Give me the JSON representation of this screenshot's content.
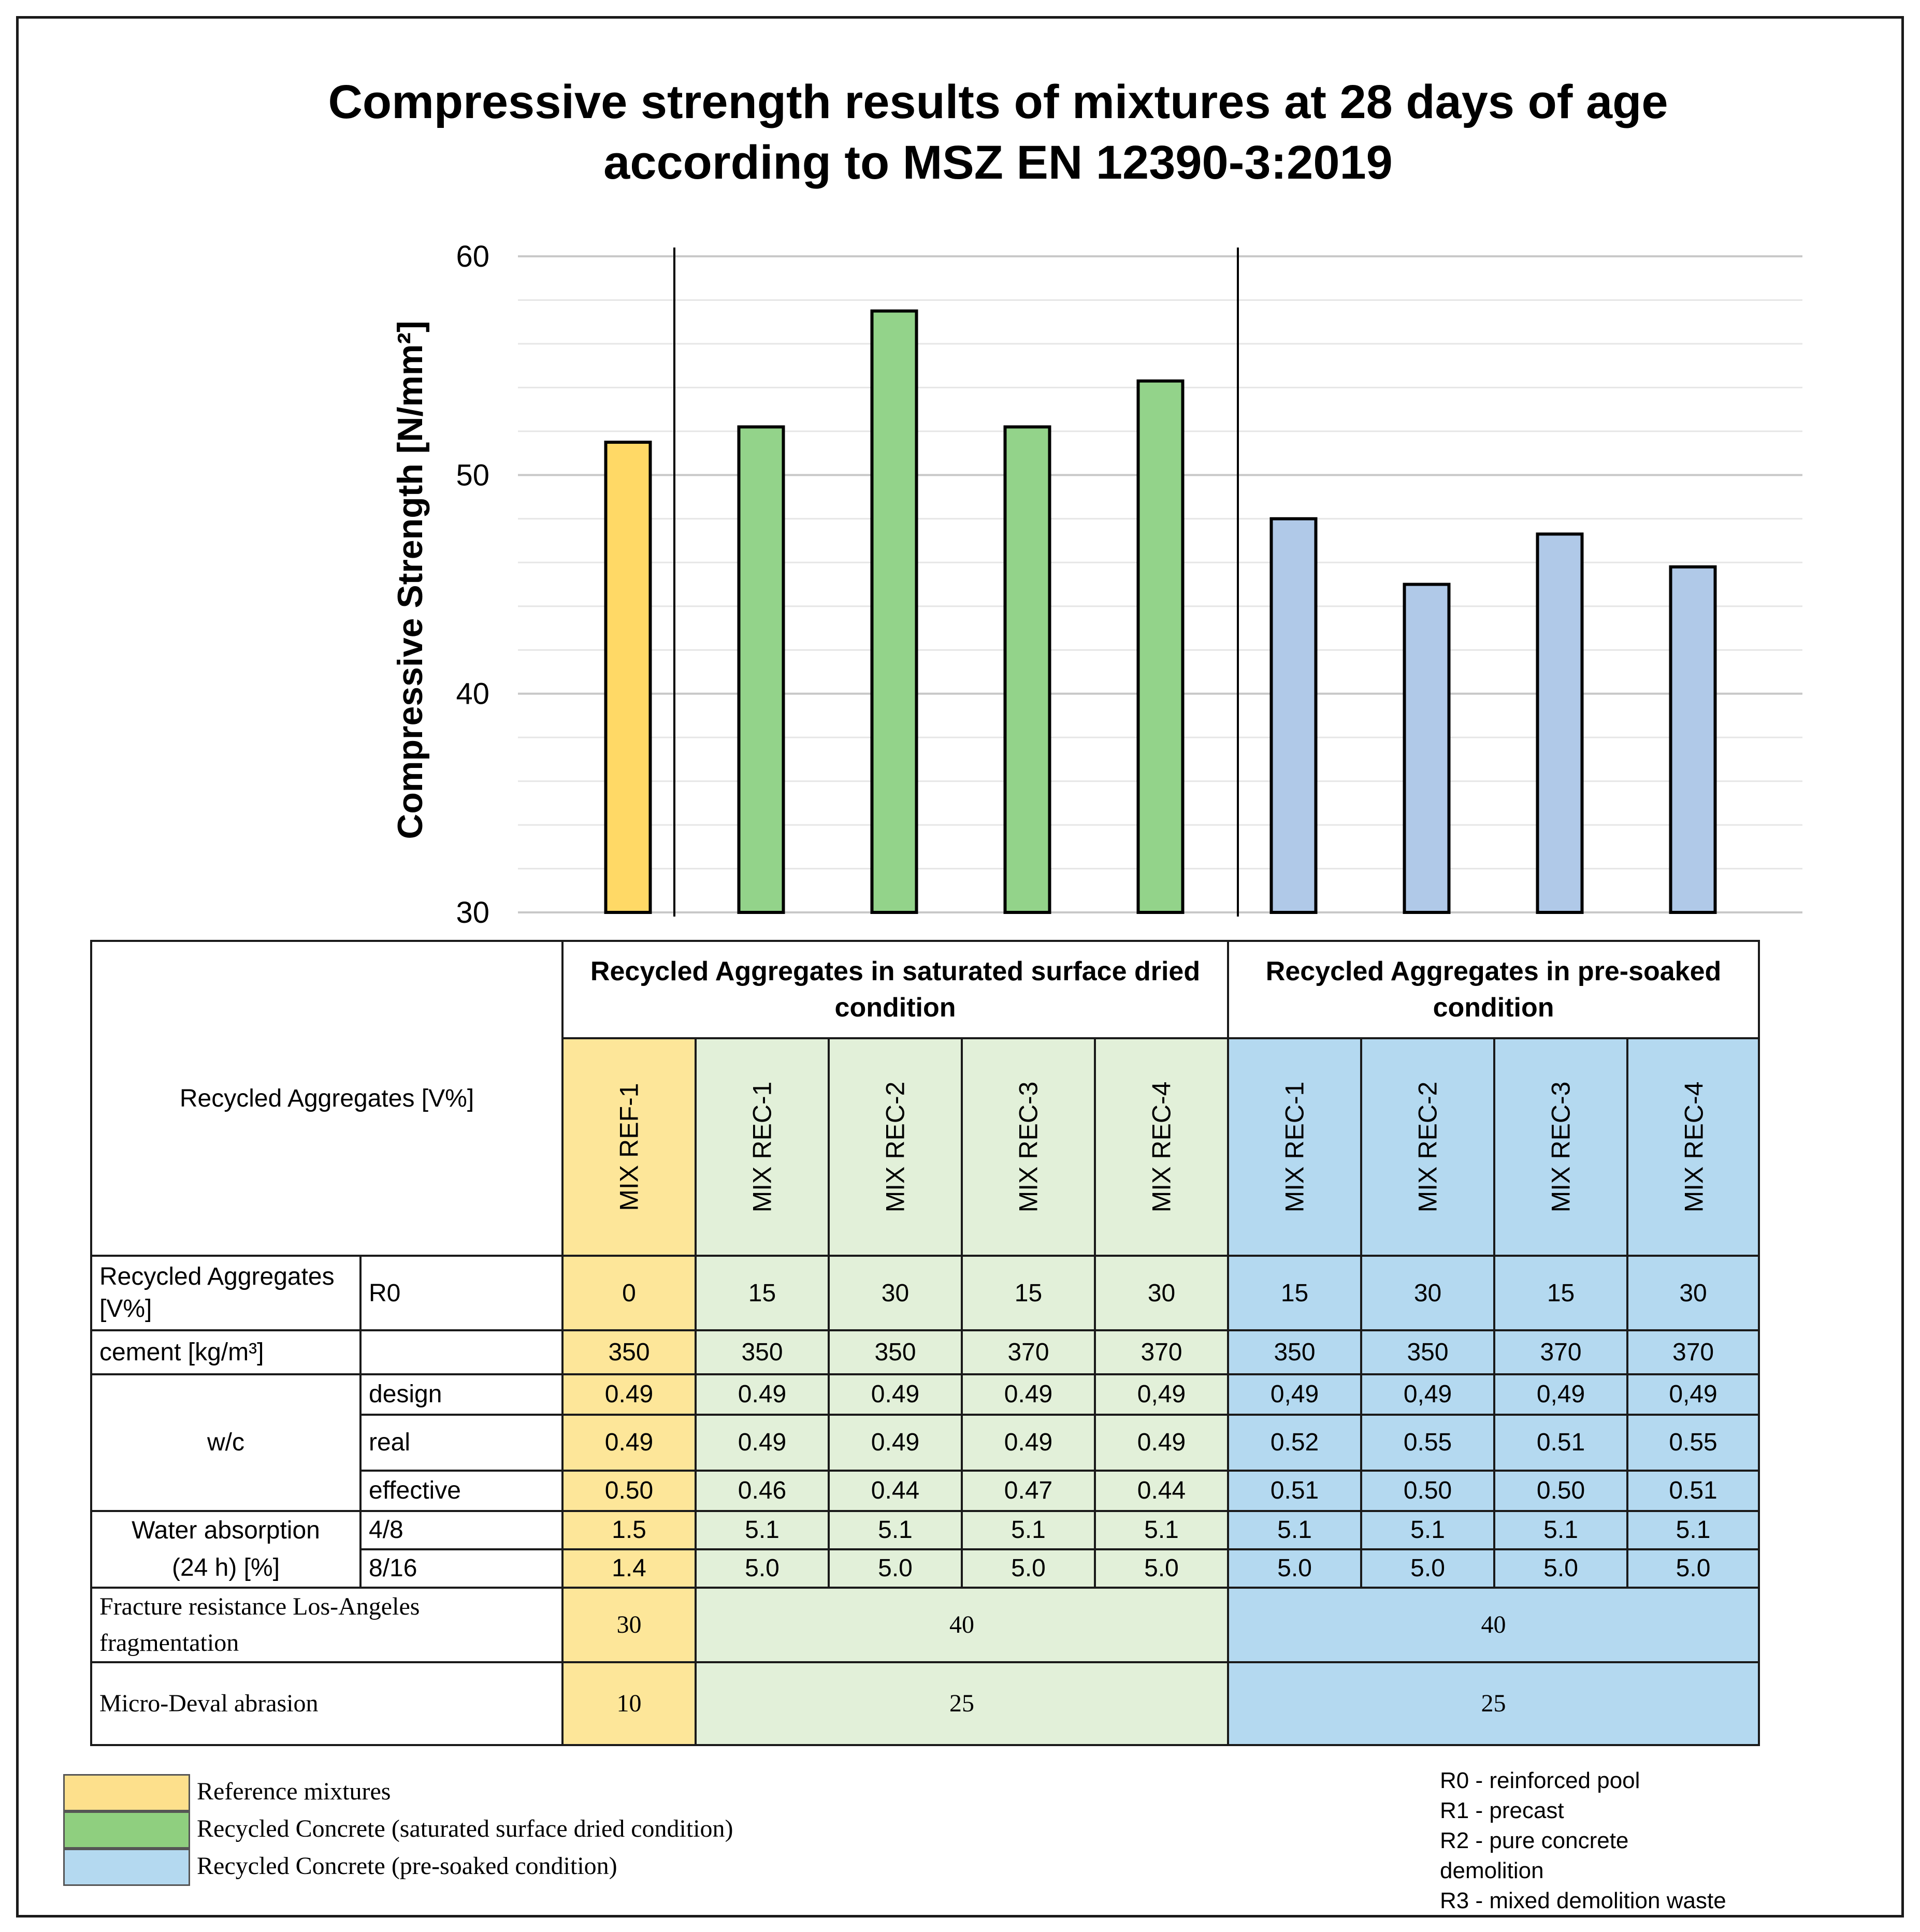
{
  "chart_data": {
    "type": "bar",
    "title": [
      "Compressive strength results of mixtures at 28 days of age",
      "according to MSZ EN 12390-3:2019"
    ],
    "ylabel": "Compressive Strength [N/mm²]",
    "xlabel": "",
    "ylim": [
      30,
      60
    ],
    "yticks": [
      30,
      40,
      50,
      60
    ],
    "grid": true,
    "categories": [
      "MIX REF-1",
      "MIX REC-1",
      "MIX REC-2",
      "MIX REC-3",
      "MIX REC-4",
      "MIX REC-1",
      "MIX REC-2",
      "MIX REC-3",
      "MIX REC-4"
    ],
    "values": [
      51.5,
      52.2,
      57.5,
      52.2,
      54.3,
      48.0,
      45.0,
      47.3,
      45.8
    ],
    "groups": [
      "reference",
      "saturated",
      "saturated",
      "saturated",
      "saturated",
      "presoaked",
      "presoaked",
      "presoaked",
      "presoaked"
    ],
    "colors": {
      "reference": "#ffd966",
      "saturated": "#93d38a",
      "presoaked": "#b0c9e8"
    }
  },
  "table": {
    "corner_label": "Recycled Aggregates [V%]",
    "group_headers": [
      "Recycled Aggregates in saturated surface dried condition",
      "Recycled Aggregates in pre-soaked condition"
    ],
    "mix_labels": [
      "MIX REF-1",
      "MIX REC-1",
      "MIX REC-2",
      "MIX REC-3",
      "MIX REC-4",
      "MIX REC-1",
      "MIX REC-2",
      "MIX REC-3",
      "MIX REC-4"
    ],
    "row_ra": {
      "label": "Recycled Aggregates [V%]",
      "sub": "R0",
      "values": [
        "0",
        "15",
        "30",
        "15",
        "30",
        "15",
        "30",
        "15",
        "30"
      ]
    },
    "row_cement": {
      "label": "cement [kg/m³]",
      "values": [
        "350",
        "350",
        "350",
        "370",
        "370",
        "350",
        "350",
        "370",
        "370"
      ]
    },
    "wc_label": "w/c",
    "row_design": {
      "sub": "design",
      "values": [
        "0.49",
        "0.49",
        "0.49",
        "0.49",
        "0,49",
        "0,49",
        "0,49",
        "0,49",
        "0,49"
      ]
    },
    "row_real": {
      "sub": "real",
      "values": [
        "0.49",
        "0.49",
        "0.49",
        "0.49",
        "0.49",
        "0.52",
        "0.55",
        "0.51",
        "0.55"
      ]
    },
    "row_effective": {
      "sub": "effective",
      "values": [
        "0.50",
        "0.46",
        "0.44",
        "0.47",
        "0.44",
        "0.51",
        "0.50",
        "0.50",
        "0.51"
      ]
    },
    "wa_label_1": "Water absorption",
    "wa_label_2": "(24 h) [%]",
    "row_wa48": {
      "sub": "4/8",
      "values": [
        "1.5",
        "5.1",
        "5.1",
        "5.1",
        "5.1",
        "5.1",
        "5.1",
        "5.1",
        "5.1"
      ]
    },
    "row_wa816": {
      "sub": "8/16",
      "values": [
        "1.4",
        "5.0",
        "5.0",
        "5.0",
        "5.0",
        "5.0",
        "5.0",
        "5.0",
        "5.0"
      ]
    },
    "row_la": {
      "label": "Fracture resistance Los-Angeles fragmentation",
      "ref": "30",
      "sat": "40",
      "pre": "40"
    },
    "row_md": {
      "label": "Micro-Deval abrasion",
      "ref": "10",
      "sat": "25",
      "pre": "25"
    }
  },
  "legend": [
    {
      "label": "Reference mixtures",
      "color": "#fde08c"
    },
    {
      "label": "Recycled Concrete (saturated surface dried condition)",
      "color": "#8fcf7f"
    },
    {
      "label": "Recycled Concrete (pre-soaked condition)",
      "color": "#b4d9f0"
    }
  ],
  "notes": [
    "R0 - reinforced pool",
    "R1 - precast",
    "R2 - pure concrete",
    "demolition",
    "R3 - mixed demolition waste"
  ]
}
